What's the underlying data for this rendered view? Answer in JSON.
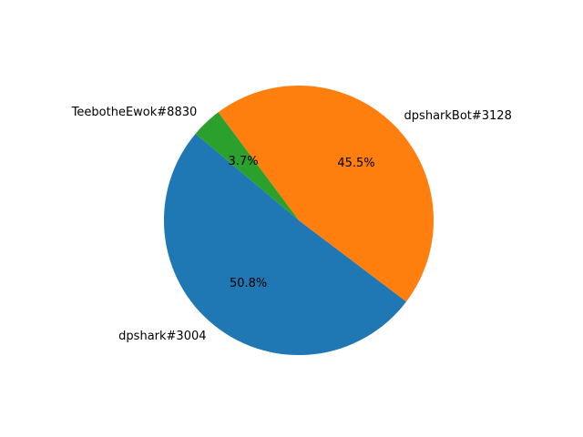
{
  "chart_data": {
    "type": "pie",
    "title": "",
    "categories": [
      "dpshark#3004",
      "dpsharkBot#3128",
      "TeebotheEwok#8830"
    ],
    "values": [
      50.8,
      45.5,
      3.7
    ],
    "percent_labels": [
      "50.8%",
      "45.5%",
      "3.7%"
    ],
    "colors": [
      "#1f77b4",
      "#ff7f0e",
      "#2ca02c"
    ],
    "start_angle_deg": 140,
    "direction": "counterclockwise",
    "legend": "none"
  }
}
